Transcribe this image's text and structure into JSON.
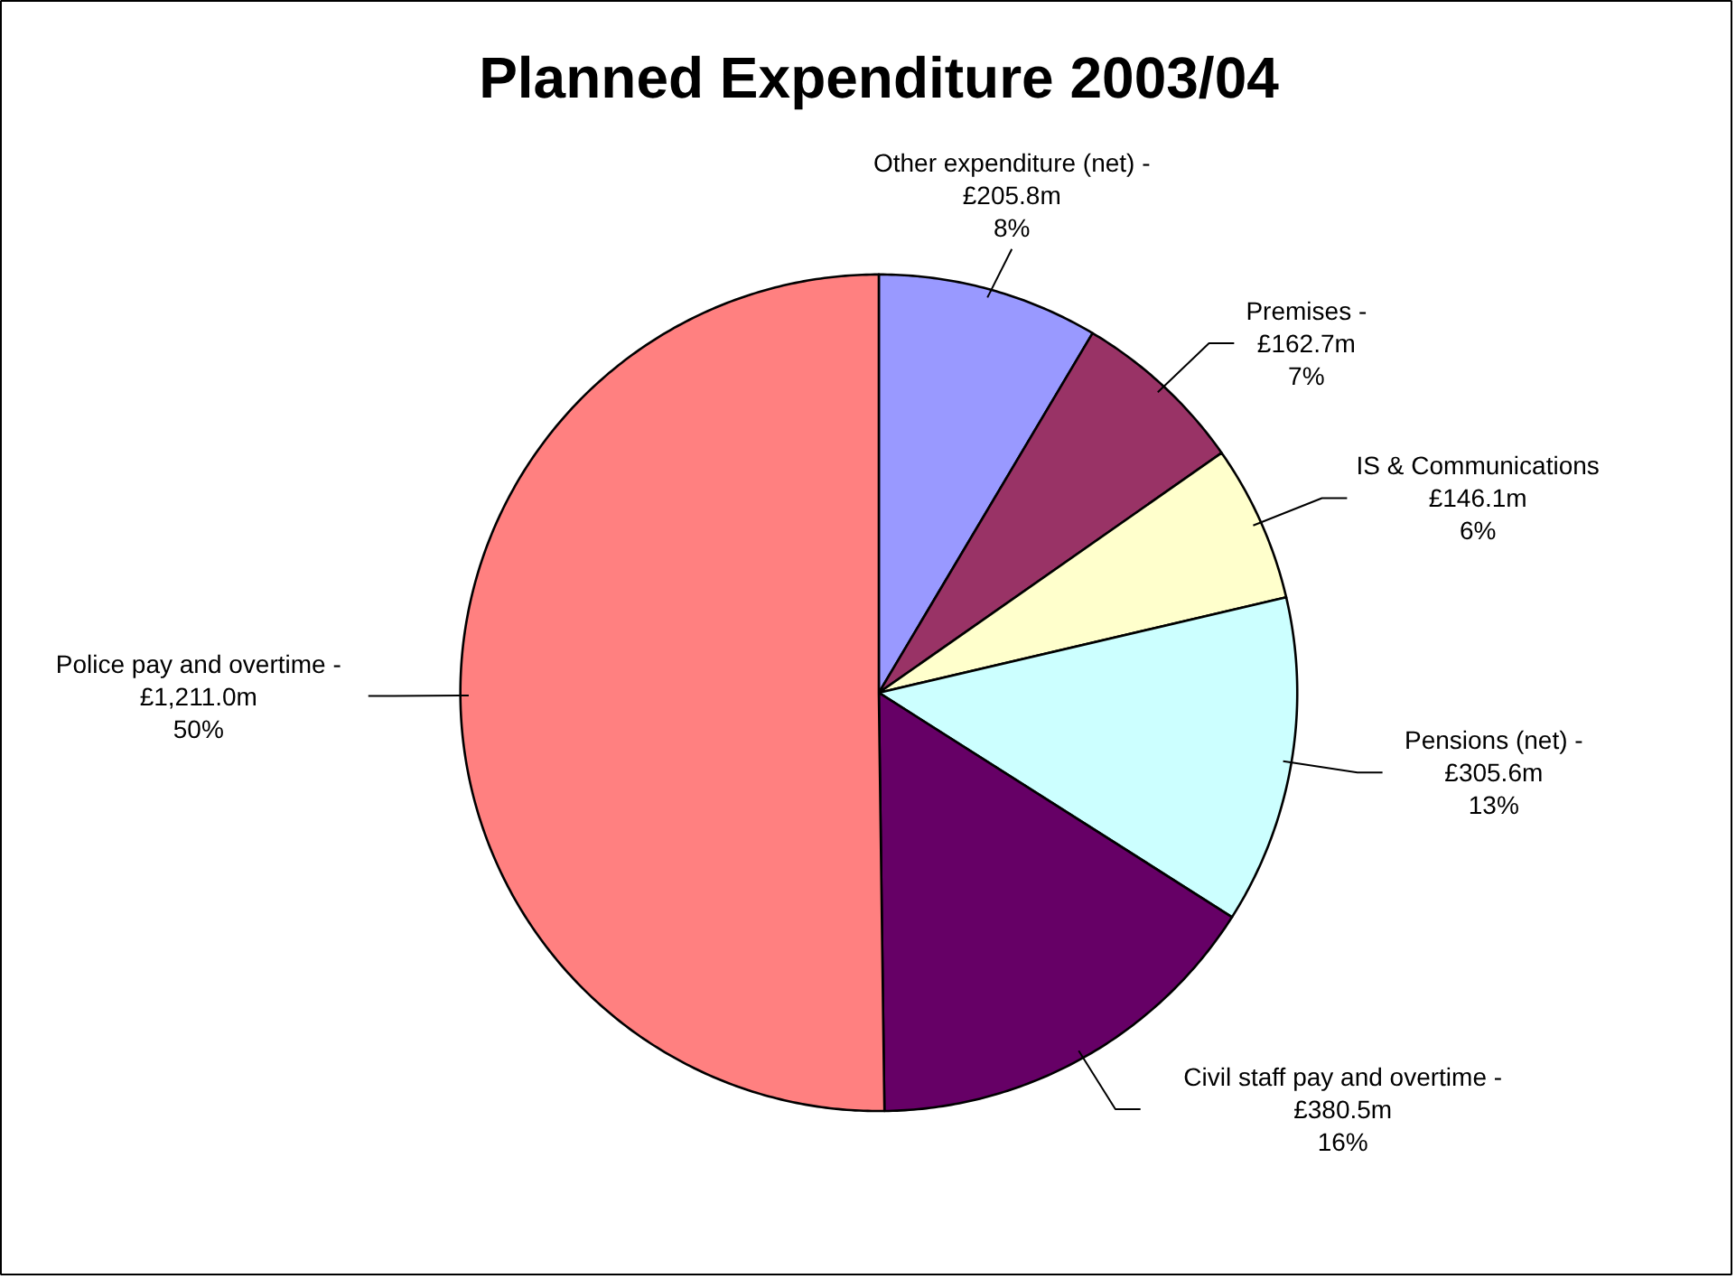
{
  "chart_data": {
    "type": "pie",
    "title": "Planned Expenditure 2003/04",
    "categories": [
      "Other expenditure (net) -",
      "Premises -",
      "IS & Communications",
      "Pensions (net) -",
      "Civil staff pay and overtime -",
      "Police pay and overtime -"
    ],
    "values": [
      205.8,
      162.7,
      146.1,
      305.6,
      380.5,
      1211.0
    ],
    "colors": [
      "#9999ff",
      "#993366",
      "#ffffcc",
      "#ccffff",
      "#660066",
      "#ff8080"
    ],
    "value_labels": [
      "£205.8m",
      "£162.7m",
      "£146.1m",
      "£305.6m",
      "£380.5m",
      "£1,211.0m"
    ],
    "annotations": [
      "8%",
      "7%",
      "6%",
      "13%",
      "16%",
      "50%"
    ]
  }
}
